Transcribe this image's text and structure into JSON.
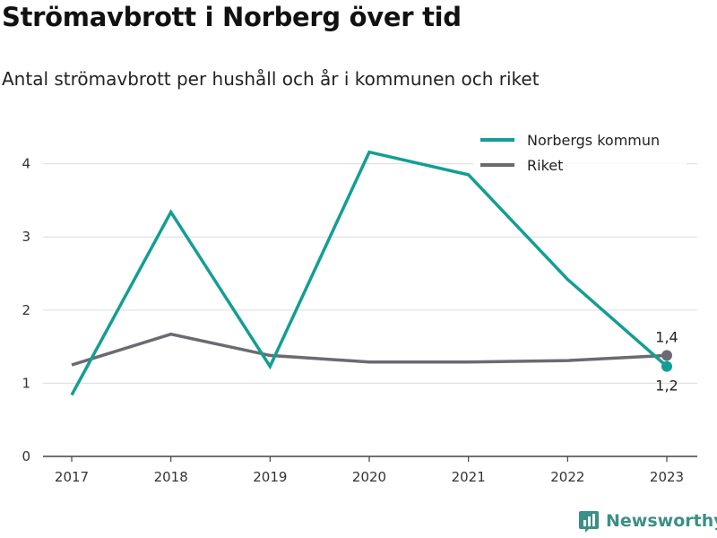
{
  "header": {
    "title": "Strömavbrott i Norberg över tid",
    "subtitle": "Antal strömavbrott per hushåll och år i kommunen och riket"
  },
  "brand": {
    "name": "Newsworthy",
    "logo_icon": "bar-chart-icon",
    "color": "#3c8f86"
  },
  "chart_data": {
    "type": "line",
    "title": "Strömavbrott i Norberg över tid",
    "subtitle": "Antal strömavbrott per hushåll och år i kommunen och riket",
    "xlabel": "",
    "ylabel": "",
    "x": [
      "2017",
      "2018",
      "2019",
      "2020",
      "2021",
      "2022",
      "2023"
    ],
    "ylim": [
      0,
      4.4
    ],
    "yticks": [
      0,
      1,
      2,
      3,
      4
    ],
    "grid": "horizontal",
    "legend_position": "top-right",
    "series": [
      {
        "name": "Norbergs kommun",
        "color": "#139e94",
        "values": [
          0.84,
          3.34,
          1.23,
          4.16,
          3.85,
          2.42,
          1.23
        ],
        "end_label": "1,2"
      },
      {
        "name": "Riket",
        "color": "#6b6a72",
        "values": [
          1.25,
          1.67,
          1.38,
          1.29,
          1.29,
          1.31,
          1.38
        ],
        "end_label": "1,4"
      }
    ]
  }
}
